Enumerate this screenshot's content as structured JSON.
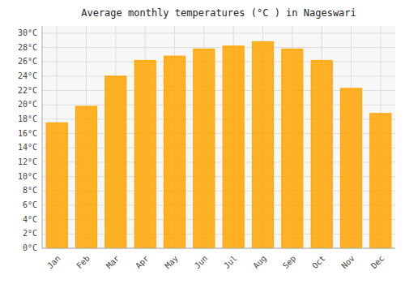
{
  "chart_data": {
    "type": "bar",
    "title": "Average monthly temperatures (°C ) in Nageswari",
    "categories": [
      "Jan",
      "Feb",
      "Mar",
      "Apr",
      "May",
      "Jun",
      "Jul",
      "Aug",
      "Sep",
      "Oct",
      "Nov",
      "Dec"
    ],
    "values": [
      17.5,
      19.8,
      24.0,
      26.2,
      26.8,
      27.8,
      28.2,
      28.8,
      27.8,
      26.2,
      22.3,
      18.8
    ],
    "color": "#FFA500",
    "ylim": [
      0,
      31
    ],
    "yticks": [
      {
        "value": 0,
        "label": "0°C"
      },
      {
        "value": 2,
        "label": "2°C"
      },
      {
        "value": 4,
        "label": "4°C"
      },
      {
        "value": 6,
        "label": "6°C"
      },
      {
        "value": 8,
        "label": "8°C"
      },
      {
        "value": 10,
        "label": "10°C"
      },
      {
        "value": 12,
        "label": "12°C"
      },
      {
        "value": 14,
        "label": "14°C"
      },
      {
        "value": 16,
        "label": "16°C"
      },
      {
        "value": 18,
        "label": "18°C"
      },
      {
        "value": 20,
        "label": "20°C"
      },
      {
        "value": 22,
        "label": "22°C"
      },
      {
        "value": 24,
        "label": "24°C"
      },
      {
        "value": 26,
        "label": "26°C"
      },
      {
        "value": 28,
        "label": "28°C"
      },
      {
        "value": 30,
        "label": "30°C"
      }
    ],
    "grid": true
  }
}
